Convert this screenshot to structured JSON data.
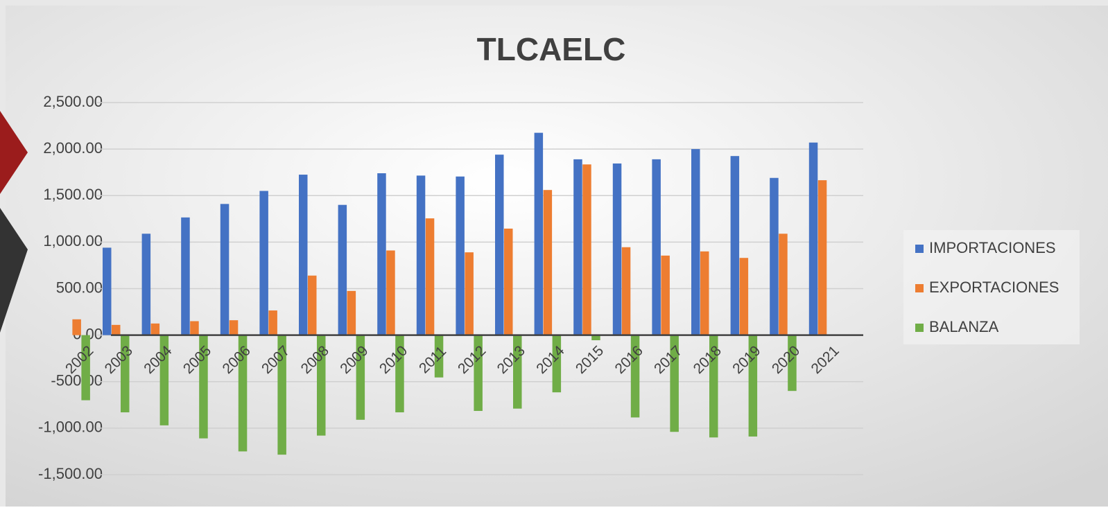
{
  "chart_data": {
    "type": "bar",
    "title": "TLCAELC",
    "categories": [
      "2002",
      "2003",
      "2004",
      "2005",
      "2006",
      "2007",
      "2008",
      "2009",
      "2010",
      "2011",
      "2012",
      "2013",
      "2014",
      "2015",
      "2016",
      "2017",
      "2018",
      "2019",
      "2020",
      "2021"
    ],
    "series": [
      {
        "name": "IMPORTACIONES",
        "color": "#4472c4",
        "values": [
          null,
          940,
          1090,
          1265,
          1410,
          1550,
          1725,
          1400,
          1740,
          1715,
          1705,
          1940,
          2175,
          1890,
          1845,
          1890,
          2000,
          1925,
          1690,
          2070
        ]
      },
      {
        "name": "EXPORTACIONES",
        "color": "#ed7d31",
        "values": [
          170,
          110,
          125,
          150,
          160,
          265,
          640,
          475,
          910,
          1255,
          890,
          1145,
          1560,
          1835,
          945,
          855,
          900,
          830,
          1090,
          1665
        ]
      },
      {
        "name": "BALANZA",
        "color": "#70ad47",
        "values": [
          -700,
          -830,
          -970,
          -1110,
          -1250,
          -1285,
          -1080,
          -910,
          -830,
          -455,
          -815,
          -790,
          -615,
          -55,
          -885,
          -1040,
          -1100,
          -1090,
          -600,
          null
        ]
      }
    ],
    "ylim": [
      -1500,
      2500
    ],
    "yticks": [
      {
        "value": -1500,
        "label": "-1,500.00"
      },
      {
        "value": -1000,
        "label": "-1,000.00"
      },
      {
        "value": -500,
        "label": "-500.00"
      },
      {
        "value": 0,
        "label": "0.00"
      },
      {
        "value": 500,
        "label": "500.00"
      },
      {
        "value": 1000,
        "label": "1,000.00"
      },
      {
        "value": 1500,
        "label": "1,500.00"
      },
      {
        "value": 2000,
        "label": "2,000.00"
      },
      {
        "value": 2500,
        "label": "2,500.00"
      }
    ],
    "grid": true,
    "legend": "right"
  }
}
